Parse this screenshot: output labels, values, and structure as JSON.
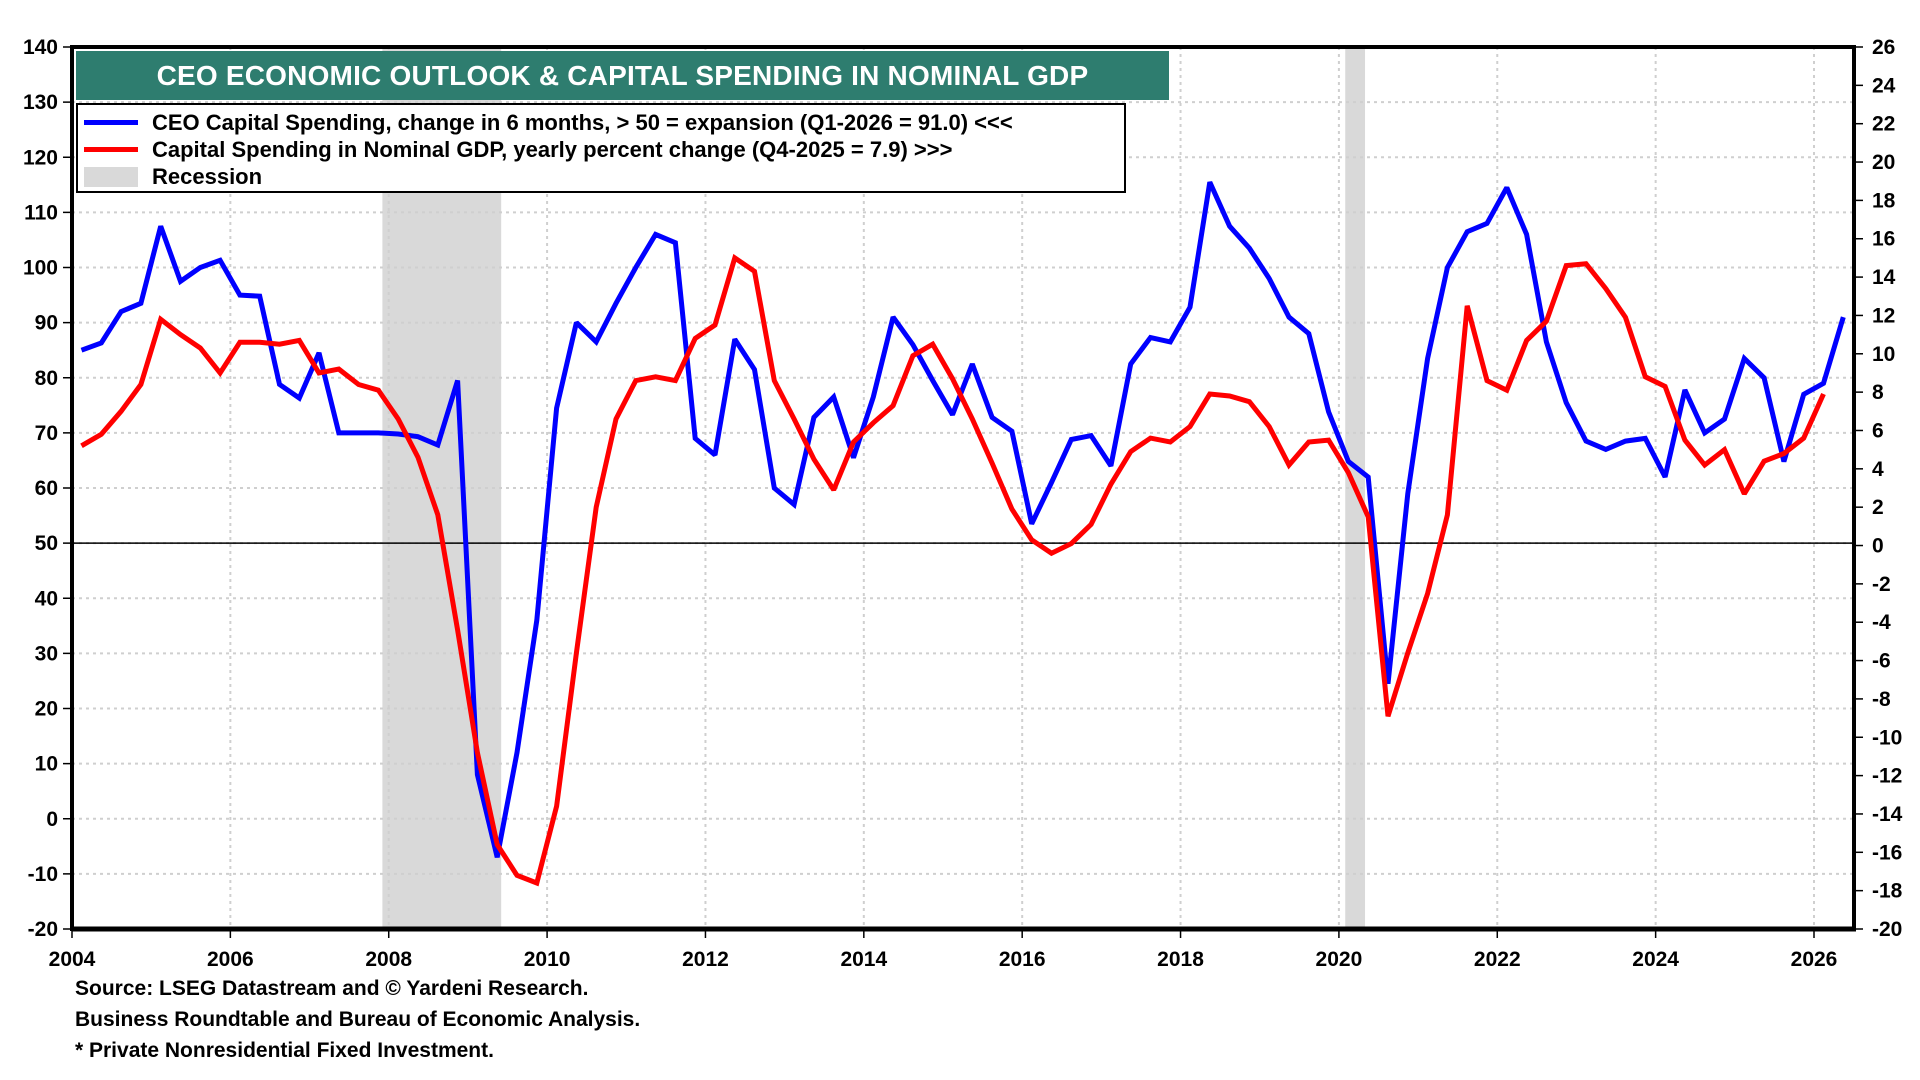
{
  "chart_data": {
    "type": "line",
    "title": "CEO ECONOMIC OUTLOOK & CAPITAL SPENDING IN NOMINAL GDP",
    "xlabel": "",
    "ylabel_left": "",
    "ylabel_right": "",
    "xlim": [
      2004,
      2026.6
    ],
    "ylim_left": [
      -20,
      140
    ],
    "ylim_right": [
      -20,
      26
    ],
    "x_ticks": [
      2004,
      2006,
      2008,
      2010,
      2012,
      2014,
      2016,
      2018,
      2020,
      2022,
      2024,
      2026
    ],
    "x_tick_labels": [
      "2004",
      "2006",
      "2008",
      "2010",
      "2012",
      "2014",
      "2016",
      "2018",
      "2020",
      "2022",
      "2024",
      "2026"
    ],
    "y_left_ticks": [
      140,
      130,
      120,
      110,
      100,
      90,
      80,
      70,
      60,
      50,
      40,
      30,
      20,
      10,
      0,
      -10,
      -20
    ],
    "y_left_tick_labels": [
      "140",
      "130",
      "120",
      "110",
      "100",
      "90",
      "80",
      "70",
      "60",
      "50",
      "40",
      "30",
      "20",
      "10",
      "0",
      "-10",
      "-20"
    ],
    "y_right_ticks": [
      26,
      24,
      22,
      20,
      18,
      16,
      14,
      12,
      10,
      8,
      6,
      4,
      2,
      0,
      -2,
      -4,
      -6,
      -8,
      -10,
      -12,
      -14,
      -16,
      -18,
      -20
    ],
    "y_right_tick_labels": [
      "26",
      "24",
      "22",
      "20",
      "18",
      "16",
      "14",
      "12",
      "10",
      "8",
      "6",
      "4",
      "2",
      "0",
      "-2",
      "-4",
      "-6",
      "-8",
      "-10",
      "-12",
      "-14",
      "-16",
      "-18",
      "-20"
    ],
    "grid": true,
    "reference_line": {
      "axis": "left",
      "value": 50
    },
    "legend_placement": "top-left",
    "recessions": [
      {
        "start": 2007.92,
        "end": 2009.42
      },
      {
        "start": 2020.08,
        "end": 2020.33
      }
    ],
    "series": [
      {
        "name": "CEO Capital Spending, change in 6 months, > 50 = expansion (Q1-2026 = 91.0) <<<",
        "axis": "left",
        "color": "#0000ff",
        "x_start": 2004.12,
        "x_step": 0.25,
        "values": [
          85,
          86.3,
          92,
          93.5,
          107.5,
          97.5,
          100,
          101.3,
          95,
          94.8,
          78.8,
          76.3,
          84.5,
          70,
          70,
          70,
          69.8,
          69.3,
          67.8,
          79.5,
          8,
          -7,
          12,
          36,
          74.5,
          90,
          86.5,
          93.5,
          100,
          106,
          104.5,
          69,
          66,
          87,
          81.5,
          60,
          57,
          72.8,
          76.5,
          65.5,
          76.5,
          91,
          86,
          79.5,
          73.3,
          82.5,
          72.8,
          70.3,
          53.5,
          61,
          68.8,
          69.5,
          64,
          82.5,
          87.3,
          86.5,
          92.8,
          115.5,
          107.5,
          103.5,
          98,
          91,
          88,
          73.8,
          64.8,
          62,
          24.5,
          59,
          83.5,
          100,
          106.5,
          108,
          114.5,
          106,
          86.5,
          75.5,
          68.5,
          67,
          68.5,
          69,
          62,
          77.8,
          70,
          72.5,
          83.5,
          80,
          64.8,
          77,
          79,
          91
        ]
      },
      {
        "name": "Capital Spending in Nominal GDP, yearly percent change (Q4-2025 = 7.9) >>>",
        "axis": "right",
        "color": "#ff0000",
        "x_start": 2004.12,
        "x_step": 0.25,
        "values": [
          5.2,
          5.8,
          7.0,
          8.4,
          11.8,
          11.0,
          10.3,
          9.0,
          10.6,
          10.6,
          10.5,
          10.7,
          9.0,
          9.2,
          8.4,
          8.1,
          6.6,
          4.6,
          1.6,
          -4.4,
          -10.8,
          -15.6,
          -17.2,
          -17.6,
          -13.6,
          -5.6,
          2.0,
          6.6,
          8.6,
          8.8,
          8.6,
          10.8,
          11.5,
          15.0,
          14.3,
          8.6,
          6.6,
          4.5,
          2.9,
          5.4,
          6.4,
          7.3,
          9.9,
          10.5,
          8.7,
          6.6,
          4.3,
          1.9,
          0.3,
          -0.4,
          0.1,
          1.1,
          3.2,
          4.9,
          5.6,
          5.4,
          6.2,
          7.9,
          7.8,
          7.5,
          6.2,
          4.2,
          5.4,
          5.5,
          3.8,
          1.5,
          -8.9,
          -5.6,
          -2.5,
          1.6,
          12.5,
          8.6,
          8.1,
          10.7,
          11.7,
          14.6,
          14.7,
          13.4,
          11.9,
          8.8,
          8.3,
          5.5,
          4.2,
          5.0,
          2.7,
          4.4,
          4.8,
          5.6,
          7.9
        ]
      }
    ]
  },
  "legend": {
    "items": [
      {
        "label": "CEO Capital Spending, change in 6 months, > 50 = expansion (Q1-2026 = 91.0) <<<",
        "color": "#0000ff",
        "kind": "line"
      },
      {
        "label": "Capital Spending in Nominal GDP, yearly percent change (Q4-2025 = 7.9) >>>",
        "color": "#ff0000",
        "kind": "line"
      },
      {
        "label": "Recession",
        "color": "#d9d9d9",
        "kind": "area"
      }
    ]
  },
  "header": {
    "title": "CEO ECONOMIC OUTLOOK & CAPITAL SPENDING IN NOMINAL GDP",
    "title_bg": "#2e7d6f"
  },
  "footnotes": {
    "source": "Source: LSEG Datastream and © Yardeni Research.",
    "line2": "Business Roundtable and Bureau of Economic Analysis.",
    "line3": "* Private Nonresidential Fixed Investment."
  }
}
